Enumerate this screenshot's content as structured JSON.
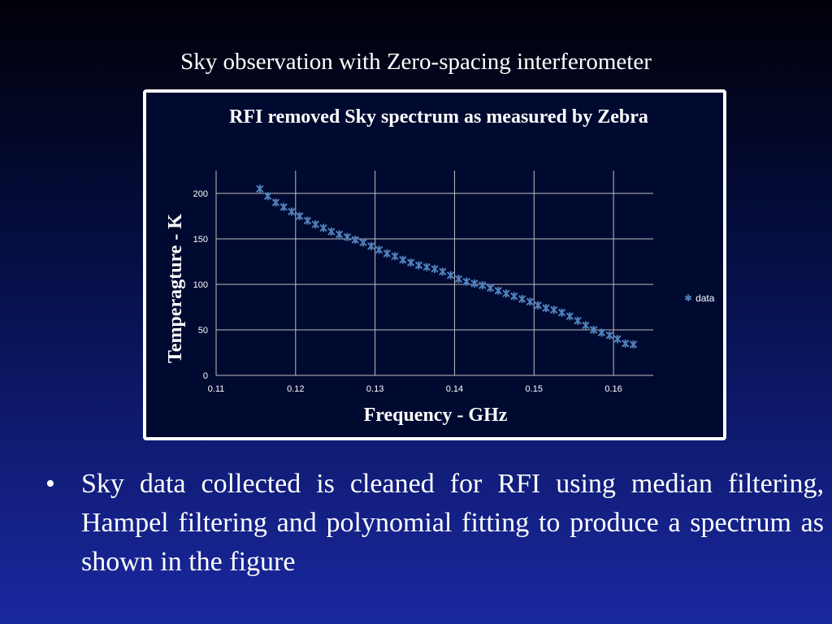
{
  "slide": {
    "title": "Sky observation with Zero-spacing interferometer",
    "bullets": [
      "Sky data collected is cleaned for RFI using median filtering, Hampel filtering and polynomial fitting to produce a spectrum as shown in the figure"
    ],
    "bullet_symbol": "•"
  },
  "colors": {
    "series": "#4f81bd",
    "frame": "#ffffff",
    "grid": "#bfbfbf"
  },
  "chart_data": {
    "type": "scatter",
    "title": "RFI removed Sky spectrum as measured by Zebra",
    "xlabel": "Frequency - GHz",
    "ylabel": "Temperagture - K",
    "xlim": [
      0.11,
      0.165
    ],
    "ylim": [
      0,
      225
    ],
    "x_ticks": [
      "0.11",
      "0.12",
      "0.13",
      "0.14",
      "0.15",
      "0.16"
    ],
    "y_ticks": [
      "0",
      "50",
      "100",
      "150",
      "200"
    ],
    "grid": true,
    "legend_position": "right",
    "series": [
      {
        "name": "data",
        "marker": "x",
        "x": [
          0.1155,
          0.1165,
          0.1175,
          0.1185,
          0.1195,
          0.1205,
          0.1215,
          0.1225,
          0.1235,
          0.1245,
          0.1255,
          0.1265,
          0.1275,
          0.1285,
          0.1295,
          0.1305,
          0.1315,
          0.1325,
          0.1335,
          0.1345,
          0.1355,
          0.1365,
          0.1375,
          0.1385,
          0.1395,
          0.1405,
          0.1415,
          0.1425,
          0.1435,
          0.1445,
          0.1455,
          0.1465,
          0.1475,
          0.1485,
          0.1495,
          0.1505,
          0.1515,
          0.1525,
          0.1535,
          0.1545,
          0.1555,
          0.1565,
          0.1575,
          0.1585,
          0.1595,
          0.1605,
          0.1615,
          0.1625
        ],
        "y": [
          205,
          197,
          190,
          185,
          180,
          175,
          170,
          166,
          162,
          158,
          155,
          152,
          149,
          146,
          142,
          138,
          134,
          131,
          127,
          124,
          121,
          119,
          117,
          114,
          110,
          106,
          103,
          101,
          99,
          96,
          93,
          90,
          87,
          84,
          81,
          77,
          74,
          72,
          69,
          65,
          60,
          55,
          50,
          47,
          44,
          40,
          35,
          34
        ]
      }
    ]
  }
}
